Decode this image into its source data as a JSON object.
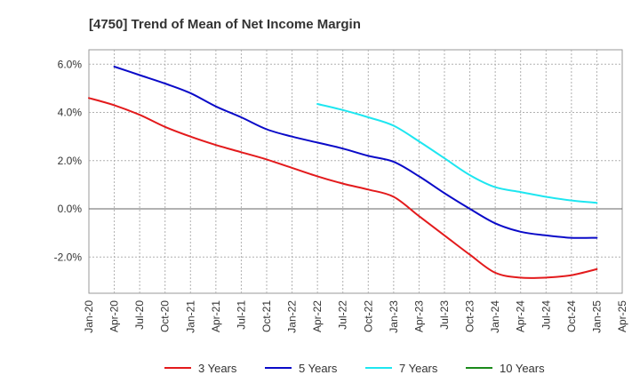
{
  "chart_data": {
    "type": "line",
    "title": "[4750]  Trend of Mean of Net Income Margin",
    "xlabel": "",
    "ylabel": "",
    "x_ticks": [
      "Jan-20",
      "Apr-20",
      "Jul-20",
      "Oct-20",
      "Jan-21",
      "Apr-21",
      "Jul-21",
      "Oct-21",
      "Jan-22",
      "Apr-22",
      "Jul-22",
      "Oct-22",
      "Jan-23",
      "Apr-23",
      "Jul-23",
      "Oct-23",
      "Jan-24",
      "Apr-24",
      "Jul-24",
      "Oct-24",
      "Jan-25",
      "Apr-25"
    ],
    "y_ticks": [
      "6.0%",
      "4.0%",
      "2.0%",
      "0.0%",
      "-2.0%"
    ],
    "y_tick_values": [
      6,
      4,
      2,
      0,
      -2
    ],
    "ylim": [
      -3.5,
      6.6
    ],
    "grid": true,
    "legend_position": "bottom",
    "series": [
      {
        "name": "3 Years",
        "color": "#e31a1c",
        "points": [
          [
            "Jan-20",
            4.6
          ],
          [
            "Apr-20",
            4.3
          ],
          [
            "Jul-20",
            3.9
          ],
          [
            "Oct-20",
            3.4
          ],
          [
            "Jan-21",
            3.0
          ],
          [
            "Apr-21",
            2.65
          ],
          [
            "Jul-21",
            2.35
          ],
          [
            "Oct-21",
            2.05
          ],
          [
            "Jan-22",
            1.7
          ],
          [
            "Apr-22",
            1.35
          ],
          [
            "Jul-22",
            1.05
          ],
          [
            "Oct-22",
            0.8
          ],
          [
            "Jan-23",
            0.5
          ],
          [
            "Apr-23",
            -0.3
          ],
          [
            "Jul-23",
            -1.1
          ],
          [
            "Oct-23",
            -1.9
          ],
          [
            "Jan-24",
            -2.65
          ],
          [
            "Apr-24",
            -2.85
          ],
          [
            "Jul-24",
            -2.85
          ],
          [
            "Oct-24",
            -2.75
          ],
          [
            "Jan-25",
            -2.5
          ]
        ]
      },
      {
        "name": "5 Years",
        "color": "#0a0ac8",
        "points": [
          [
            "Apr-20",
            5.9
          ],
          [
            "Jul-20",
            5.55
          ],
          [
            "Oct-20",
            5.2
          ],
          [
            "Jan-21",
            4.8
          ],
          [
            "Apr-21",
            4.25
          ],
          [
            "Jul-21",
            3.8
          ],
          [
            "Oct-21",
            3.3
          ],
          [
            "Jan-22",
            3.0
          ],
          [
            "Apr-22",
            2.75
          ],
          [
            "Jul-22",
            2.5
          ],
          [
            "Oct-22",
            2.2
          ],
          [
            "Jan-23",
            1.95
          ],
          [
            "Apr-23",
            1.35
          ],
          [
            "Jul-23",
            0.65
          ],
          [
            "Oct-23",
            0.0
          ],
          [
            "Jan-24",
            -0.6
          ],
          [
            "Apr-24",
            -0.95
          ],
          [
            "Jul-24",
            -1.1
          ],
          [
            "Oct-24",
            -1.2
          ],
          [
            "Jan-25",
            -1.2
          ]
        ]
      },
      {
        "name": "7 Years",
        "color": "#1ee6f0",
        "points": [
          [
            "Apr-22",
            4.35
          ],
          [
            "Jul-22",
            4.1
          ],
          [
            "Oct-22",
            3.8
          ],
          [
            "Jan-23",
            3.45
          ],
          [
            "Apr-23",
            2.8
          ],
          [
            "Jul-23",
            2.1
          ],
          [
            "Oct-23",
            1.4
          ],
          [
            "Jan-24",
            0.9
          ],
          [
            "Apr-24",
            0.7
          ],
          [
            "Jul-24",
            0.5
          ],
          [
            "Oct-24",
            0.35
          ],
          [
            "Jan-25",
            0.25
          ]
        ]
      },
      {
        "name": "10 Years",
        "color": "#1a8a1a",
        "points": []
      }
    ]
  }
}
